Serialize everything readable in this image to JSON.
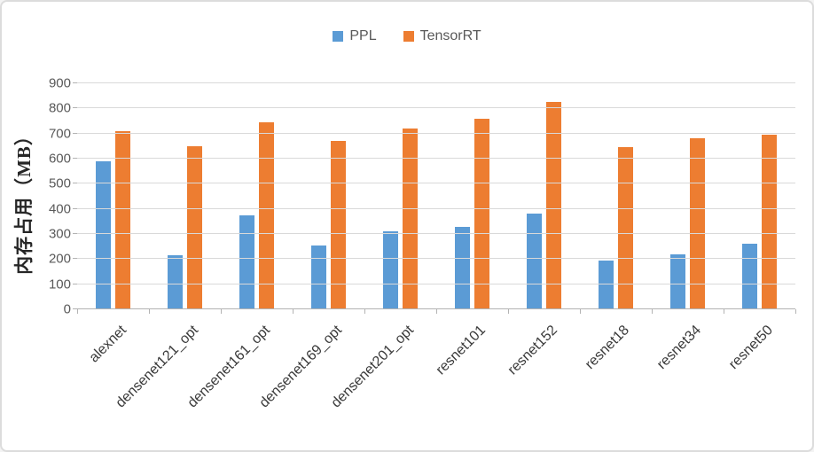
{
  "chart_data": {
    "type": "bar",
    "title": "",
    "xlabel": "",
    "ylabel": "内存占用（MB）",
    "categories": [
      "alexnet",
      "densenet121_opt",
      "densenet161_opt",
      "densenet169_opt",
      "densenet201_opt",
      "resnet101",
      "resnet152",
      "resnet18",
      "resnet34",
      "resnet50"
    ],
    "series": [
      {
        "name": "PPL",
        "color": "#5B9BD5",
        "values": [
          590,
          215,
          375,
          255,
          310,
          330,
          380,
          195,
          220,
          260
        ]
      },
      {
        "name": "TensorRT",
        "color": "#ED7D31",
        "values": [
          710,
          650,
          745,
          670,
          720,
          760,
          825,
          645,
          680,
          695
        ]
      }
    ],
    "ylim": [
      0,
      900
    ],
    "ytick_step": 100,
    "yticks": [
      "0",
      "100",
      "200",
      "300",
      "400",
      "500",
      "600",
      "700",
      "800",
      "900"
    ],
    "grid": true,
    "legend_position": "top"
  },
  "colors": {
    "gridline": "#d9d9d9",
    "axis_line": "#b3b3b3",
    "ytick_text": "#595959",
    "xlabel_text": "#3a3a3a",
    "legend_text": "#595959",
    "card_border": "#dcdcdc",
    "background": "#ffffff"
  }
}
